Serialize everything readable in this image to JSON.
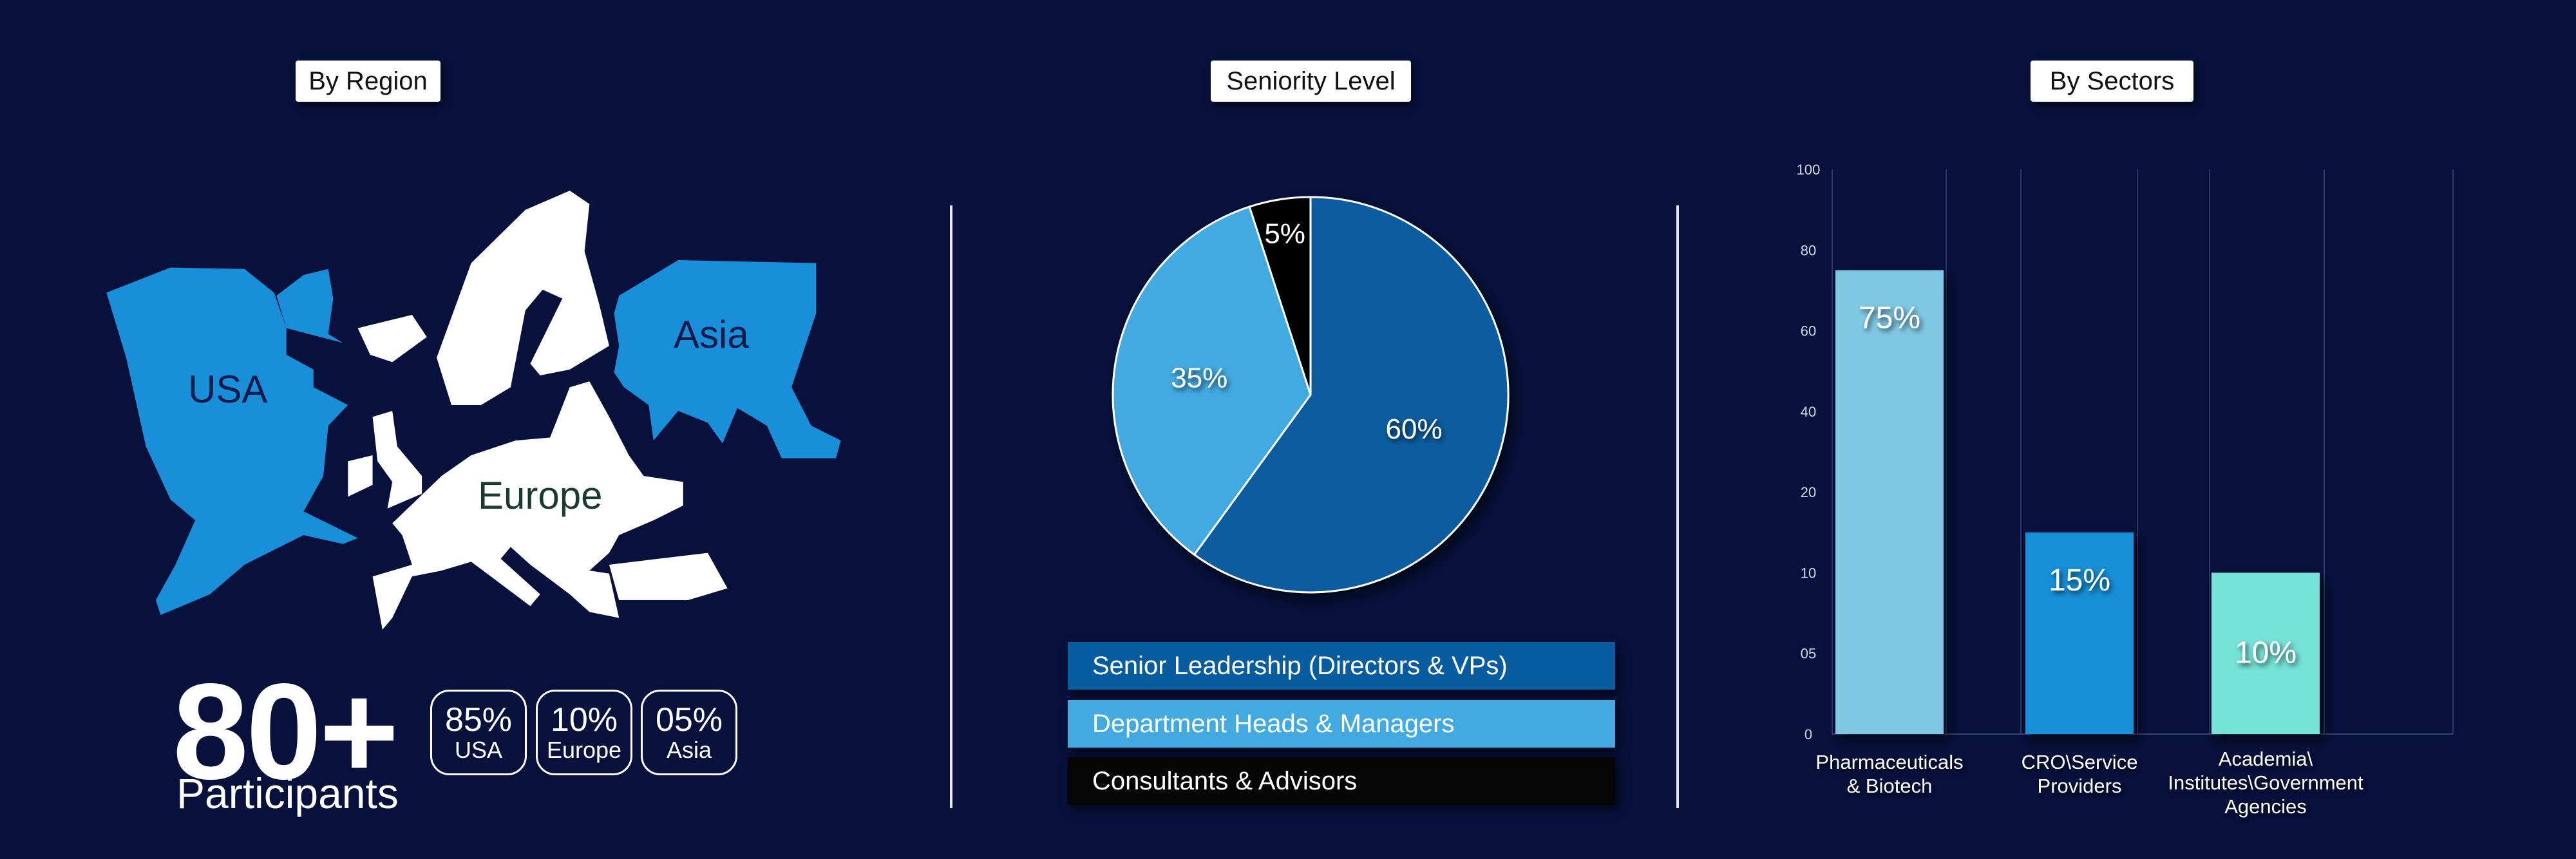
{
  "sections": {
    "region_title": "By Region",
    "seniority_title": "Seniority Level",
    "sectors_title": "By Sectors"
  },
  "region": {
    "map_labels": {
      "usa": "USA",
      "europe": "Europe",
      "asia": "Asia"
    },
    "total": "80+",
    "total_label": "Participants",
    "badges": [
      {
        "pct": "85%",
        "label": "USA"
      },
      {
        "pct": "10%",
        "label": "Europe"
      },
      {
        "pct": "05%",
        "label": "Asia"
      }
    ],
    "colors": {
      "usa": "#1a8fd9",
      "europe": "#ffffff",
      "asia": "#1a8fd9"
    }
  },
  "chart_data": [
    {
      "type": "pie",
      "title": "Seniority Level",
      "slices": [
        {
          "label": "Senior Leadership (Directors & VPs)",
          "value": 60,
          "data_label": "60%",
          "color": "#075c9f"
        },
        {
          "label": "Department Heads & Managers",
          "value": 35,
          "data_label": "35%",
          "color": "#42aae1"
        },
        {
          "label": "Consultants & Advisors",
          "value": 5,
          "data_label": "5%",
          "color": "#050505"
        }
      ],
      "legend_position": "bottom"
    },
    {
      "type": "bar",
      "title": "By Sectors",
      "categories": [
        "Pharmaceuticals\n& Biotech",
        "CRO\\Service\nProviders",
        "Academia\\\nInstitutes\\Government\nAgencies"
      ],
      "values": [
        75,
        15,
        10
      ],
      "data_labels": [
        "75%",
        "15%",
        "10%"
      ],
      "colors": [
        "#7ec8e3",
        "#158fd8",
        "#74e3d8"
      ],
      "y_ticks": [
        "0",
        "05",
        "10",
        "20",
        "40",
        "60",
        "80",
        "100"
      ],
      "y_tick_values": [
        0,
        5,
        10,
        20,
        40,
        60,
        80,
        100
      ],
      "ylim": [
        0,
        100
      ],
      "xlabel": "",
      "ylabel": "",
      "grid": "vertical"
    }
  ],
  "background_color": "#07113b"
}
